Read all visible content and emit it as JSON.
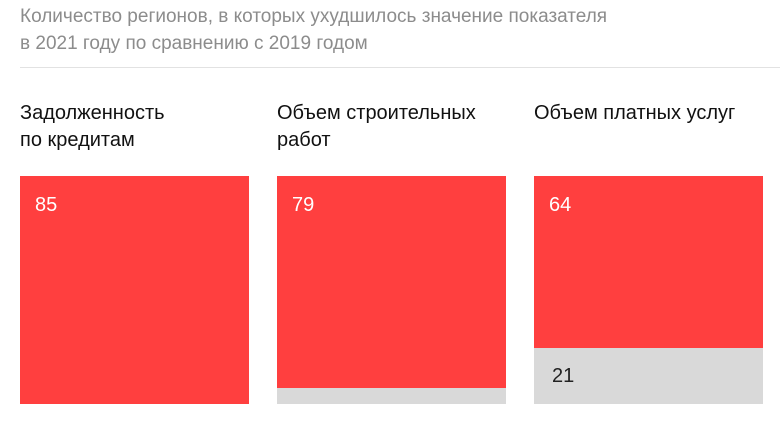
{
  "header": {
    "title_line1": "Количество регионов, в которых ухудшилось значение показателя",
    "title_line2": "в 2021 году по сравнению с 2019 годом"
  },
  "colors": {
    "worsened": "#ff3f3f",
    "remainder": "#d9d9d9"
  },
  "chart_data": {
    "type": "bar",
    "title": "Количество регионов, в которых ухудшилось значение показателя в 2021 году по сравнению с 2019 годом",
    "categories": [
      "Задолженность по кредитам",
      "Объем строительных работ",
      "Объем платных услуг"
    ],
    "series": [
      {
        "values": [
          85,
          79,
          64
        ]
      },
      {
        "values": [
          0,
          6,
          21
        ]
      }
    ],
    "total": 85,
    "stacked": true,
    "panels": [
      {
        "label_line1": "Задолженность",
        "label_line2": "по кредитам",
        "worsened": 85,
        "worsened_label": "85",
        "other": 0,
        "other_label": ""
      },
      {
        "label_line1": "Объем строительных",
        "label_line2": "работ",
        "worsened": 79,
        "worsened_label": "79",
        "other": 6,
        "other_label": ""
      },
      {
        "label_line1": "Объем платных услуг",
        "label_line2": "",
        "worsened": 64,
        "worsened_label": "64",
        "other": 21,
        "other_label": "21"
      }
    ]
  }
}
